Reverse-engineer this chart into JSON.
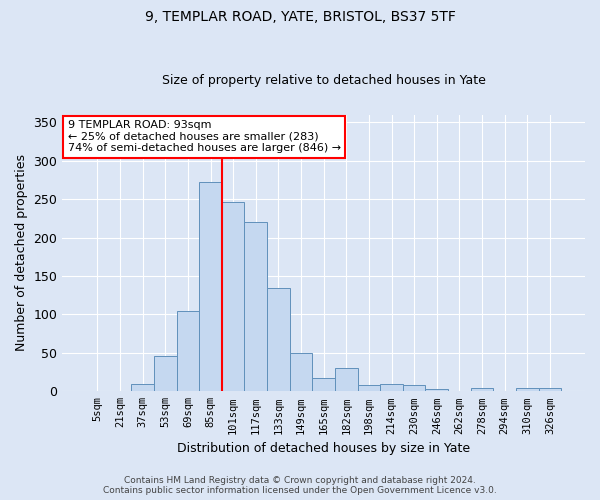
{
  "title_line1": "9, TEMPLAR ROAD, YATE, BRISTOL, BS37 5TF",
  "title_line2": "Size of property relative to detached houses in Yate",
  "xlabel": "Distribution of detached houses by size in Yate",
  "ylabel": "Number of detached properties",
  "bar_labels": [
    "5sqm",
    "21sqm",
    "37sqm",
    "53sqm",
    "69sqm",
    "85sqm",
    "101sqm",
    "117sqm",
    "133sqm",
    "149sqm",
    "165sqm",
    "182sqm",
    "198sqm",
    "214sqm",
    "230sqm",
    "246sqm",
    "262sqm",
    "278sqm",
    "294sqm",
    "310sqm",
    "326sqm"
  ],
  "bar_values": [
    0,
    0,
    10,
    46,
    104,
    272,
    246,
    220,
    135,
    50,
    17,
    30,
    8,
    10,
    8,
    3,
    0,
    4,
    0,
    4,
    4
  ],
  "bar_color": "#c5d8f0",
  "bar_edge_color": "#6090bb",
  "bg_color": "#dce6f5",
  "grid_color": "#ffffff",
  "vline_x": 5.5,
  "vline_color": "red",
  "annotation_text": "9 TEMPLAR ROAD: 93sqm\n← 25% of detached houses are smaller (283)\n74% of semi-detached houses are larger (846) →",
  "annotation_box_color": "white",
  "annotation_box_edge": "red",
  "ylim": [
    0,
    360
  ],
  "yticks": [
    0,
    50,
    100,
    150,
    200,
    250,
    300,
    350
  ],
  "footer": "Contains HM Land Registry data © Crown copyright and database right 2024.\nContains public sector information licensed under the Open Government Licence v3.0."
}
